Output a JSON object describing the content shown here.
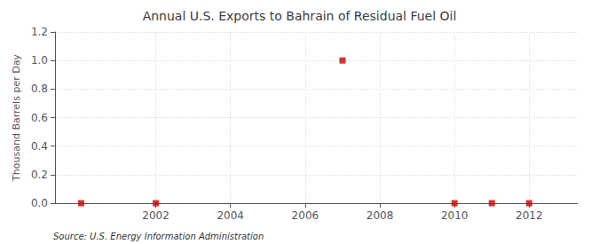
{
  "chart_data": {
    "type": "scatter",
    "title": "Annual U.S. Exports to Bahrain of Residual Fuel Oil",
    "ylabel": "Thousand Barrels per Day",
    "annotation": "Source: U.S. Energy Information Administration",
    "x": [
      2000,
      2002,
      2007,
      2010,
      2011,
      2012
    ],
    "values": [
      0.0,
      0.0,
      1.0,
      0.0,
      0.0,
      0.0
    ],
    "color": "#cc0000",
    "marker": "square",
    "xlim": [
      1999.3,
      2013.3
    ],
    "xticks": [
      2002,
      2004,
      2006,
      2008,
      2010,
      2012
    ],
    "ylim": [
      0.0,
      1.2
    ],
    "yticks": [
      {
        "value": 0.0,
        "label": "0.0"
      },
      0.2,
      0.4,
      0.6,
      0.8,
      {
        "value": 1.0,
        "label": "1.0"
      },
      1.2
    ],
    "grid": true
  }
}
